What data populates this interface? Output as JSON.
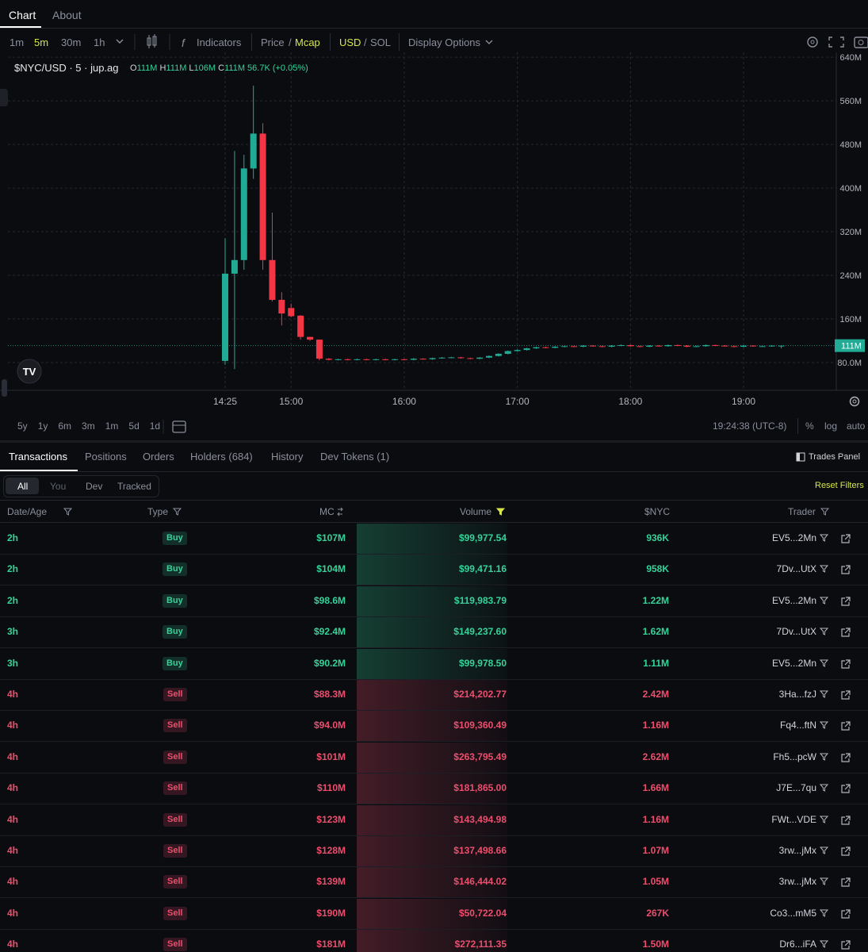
{
  "tabs": [
    "Chart",
    "About"
  ],
  "toolbar": {
    "intervals": [
      "1m",
      "5m",
      "30m",
      "1h"
    ],
    "indicators": "Indicators",
    "price": "Price",
    "sep1": "/",
    "mcap": "Mcap",
    "usd": "USD",
    "sep2": "/",
    "sol": "SOL",
    "display": "Display Options"
  },
  "legend": {
    "symbol": "$NYC/USD · 5 · jup.ag",
    "o": "O",
    "o_value": "111M",
    "h": "H",
    "h_value": "111M",
    "l": "L",
    "l_value": "106M",
    "c": "C",
    "c_value": "111M",
    "change": "56.7K (+0.05%)"
  },
  "chart_data": {
    "type": "candlestick",
    "x": [
      "14:25",
      "14:30",
      "14:35",
      "14:40",
      "14:45",
      "14:50",
      "14:55",
      "15:00",
      "15:05",
      "15:10",
      "15:15",
      "15:20",
      "15:25",
      "15:30",
      "15:35",
      "15:40",
      "15:45",
      "15:50",
      "15:55",
      "16:00",
      "16:05",
      "16:10",
      "16:15",
      "16:20",
      "16:25",
      "16:30",
      "16:35",
      "16:40",
      "16:45",
      "16:50",
      "16:55",
      "17:00",
      "17:05",
      "17:10",
      "17:15",
      "17:20",
      "17:25",
      "17:30",
      "17:35",
      "17:40",
      "17:45",
      "17:50",
      "17:55",
      "18:00",
      "18:05",
      "18:10",
      "18:15",
      "18:20",
      "18:25",
      "18:30",
      "18:35",
      "18:40",
      "18:45",
      "18:50",
      "18:55",
      "19:00",
      "19:05",
      "19:10",
      "19:15",
      "19:20"
    ],
    "open": [
      83,
      243,
      268,
      436,
      500,
      268,
      195,
      180,
      166,
      127,
      122,
      87,
      85,
      86,
      85,
      86,
      85,
      86,
      85,
      86,
      85,
      87,
      86,
      88,
      89,
      89.5,
      88,
      87,
      89,
      92,
      96,
      101,
      103,
      106,
      108,
      107,
      109,
      110,
      109,
      111,
      110,
      109,
      111,
      112,
      110,
      109,
      111,
      110,
      112,
      111,
      109,
      110,
      112,
      111,
      110,
      109,
      111,
      110,
      110,
      111
    ],
    "high": [
      308,
      468,
      461,
      588,
      519,
      355,
      209,
      188,
      167,
      127,
      122,
      88,
      87,
      87,
      87,
      87,
      87,
      87,
      87,
      87,
      88,
      88,
      89,
      90,
      90.5,
      90.5,
      89,
      90,
      93,
      97,
      102,
      104,
      107,
      109,
      109,
      110,
      111,
      111,
      112,
      112,
      111,
      112,
      113,
      113,
      111,
      112,
      112,
      113,
      113,
      112,
      111,
      113,
      113,
      112,
      111,
      112,
      112,
      111,
      112,
      111
    ],
    "low": [
      76,
      68,
      250,
      417,
      250,
      192,
      148,
      163,
      122,
      120,
      84,
      84,
      84,
      84,
      84,
      84,
      84,
      84,
      84,
      84,
      84,
      85,
      85,
      87,
      88,
      87,
      86,
      86,
      88,
      91,
      95,
      100,
      102,
      105,
      106,
      106,
      108,
      108,
      108,
      109,
      108,
      108,
      110,
      109,
      108,
      108,
      109,
      109,
      110,
      108,
      108,
      109,
      110,
      109,
      108,
      108,
      109,
      109,
      109,
      106
    ],
    "close": [
      243,
      268,
      436,
      500,
      268,
      195,
      170,
      165,
      127,
      122,
      87,
      85,
      86,
      85,
      86,
      85,
      86,
      85,
      86,
      85,
      87,
      86,
      88,
      89,
      89.5,
      88,
      87,
      89,
      92,
      96,
      101,
      103,
      106,
      108,
      107,
      109,
      110,
      109,
      111,
      110,
      109,
      111,
      112,
      110,
      109,
      111,
      110,
      112,
      111,
      109,
      110,
      112,
      111,
      110,
      109,
      111,
      110,
      110,
      111,
      111
    ],
    "up_color": "#22ab94",
    "down_color": "#f23645",
    "ylim": [
      29,
      649
    ],
    "yticks": [
      {
        "value": 80,
        "label": "80.0M"
      },
      {
        "value": 160,
        "label": "160M"
      },
      {
        "value": 240,
        "label": "240M"
      },
      {
        "value": 320,
        "label": "320M"
      },
      {
        "value": 400,
        "label": "400M"
      },
      {
        "value": 480,
        "label": "480M"
      },
      {
        "value": 560,
        "label": "560M"
      },
      {
        "value": 640,
        "label": "640M"
      }
    ],
    "xticks": [
      "14:25",
      "15:00",
      "16:00",
      "17:00",
      "18:00",
      "19:00"
    ],
    "last_price": {
      "value": 111,
      "label": "111M"
    },
    "grid": true
  },
  "range_buttons": [
    "5y",
    "1y",
    "6m",
    "3m",
    "1m",
    "5d",
    "1d"
  ],
  "clock": "19:24:38 (UTC-8)",
  "scale_options": [
    "%",
    "log",
    "auto"
  ],
  "panel_tabs": [
    "Transactions",
    "Positions",
    "Orders",
    "Holders (684)",
    "History",
    "Dev Tokens (1)"
  ],
  "trades_panel": "Trades Panel",
  "filters": [
    "All",
    "You",
    "Dev",
    "Tracked"
  ],
  "reset": "Reset Filters",
  "table": {
    "columns": [
      "Date/Age",
      "Type",
      "MC",
      "Volume",
      "$NYC",
      "Trader"
    ],
    "rows": [
      {
        "cells": [
          "2h",
          "Buy",
          "$107M",
          "$99,977.54",
          "936K",
          "EV5...2Mn"
        ],
        "color": "#35d39a"
      },
      {
        "cells": [
          "2h",
          "Buy",
          "$104M",
          "$99,471.16",
          "958K",
          "7Dv...UtX"
        ],
        "color": "#35d39a"
      },
      {
        "cells": [
          "2h",
          "Buy",
          "$98.6M",
          "$119,983.79",
          "1.22M",
          "EV5...2Mn"
        ],
        "color": "#35d39a"
      },
      {
        "cells": [
          "3h",
          "Buy",
          "$92.4M",
          "$149,237.60",
          "1.62M",
          "7Dv...UtX"
        ],
        "color": "#35d39a"
      },
      {
        "cells": [
          "3h",
          "Buy",
          "$90.2M",
          "$99,978.50",
          "1.11M",
          "EV5...2Mn"
        ],
        "color": "#35d39a"
      },
      {
        "cells": [
          "4h",
          "Sell",
          "$88.3M",
          "$214,202.77",
          "2.42M",
          "3Ha...fzJ"
        ],
        "color": "#ec4e6e"
      },
      {
        "cells": [
          "4h",
          "Sell",
          "$94.0M",
          "$109,360.49",
          "1.16M",
          "Fq4...ftN"
        ],
        "color": "#ec4e6e"
      },
      {
        "cells": [
          "4h",
          "Sell",
          "$101M",
          "$263,795.49",
          "2.62M",
          "Fh5...pcW"
        ],
        "color": "#ec4e6e"
      },
      {
        "cells": [
          "4h",
          "Sell",
          "$110M",
          "$181,865.00",
          "1.66M",
          "J7E...7qu"
        ],
        "color": "#ec4e6e"
      },
      {
        "cells": [
          "4h",
          "Sell",
          "$123M",
          "$143,494.98",
          "1.16M",
          "FWt...VDE"
        ],
        "color": "#ec4e6e"
      },
      {
        "cells": [
          "4h",
          "Sell",
          "$128M",
          "$137,498.66",
          "1.07M",
          "3rw...jMx"
        ],
        "color": "#ec4e6e"
      },
      {
        "cells": [
          "4h",
          "Sell",
          "$139M",
          "$146,444.02",
          "1.05M",
          "3rw...jMx"
        ],
        "color": "#ec4e6e"
      },
      {
        "cells": [
          "4h",
          "Sell",
          "$190M",
          "$50,722.04",
          "267K",
          "Co3...mM5"
        ],
        "color": "#ec4e6e"
      },
      {
        "cells": [
          "4h",
          "Sell",
          "$181M",
          "$272,111.35",
          "1.50M",
          "Dr6...iFA"
        ],
        "color": "#ec4e6e"
      }
    ]
  }
}
